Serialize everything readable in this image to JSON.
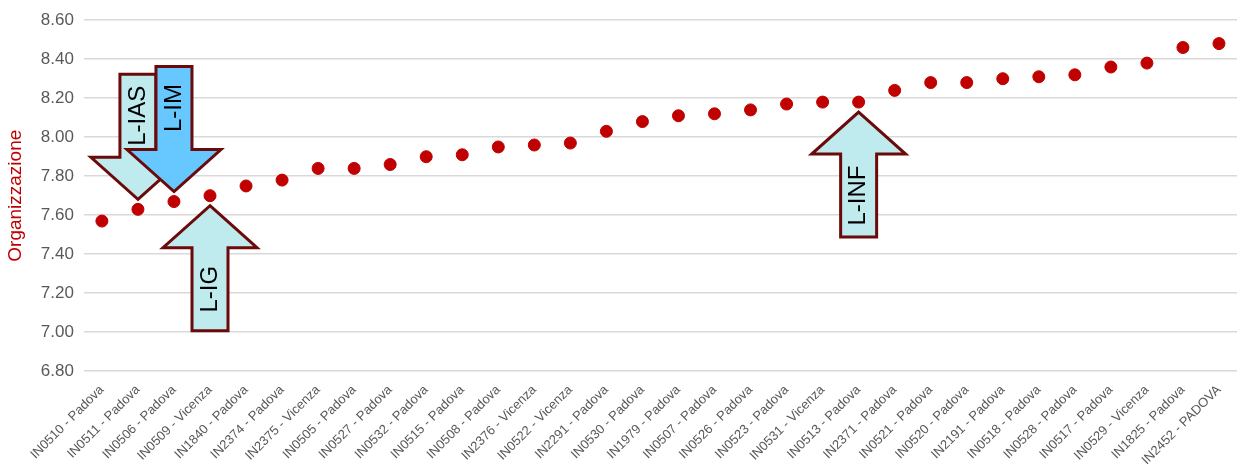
{
  "chart_data": {
    "type": "scatter",
    "ylabel": "Organizzazione",
    "categories": [
      "IN0510 - Padova",
      "IN0511 - Padova",
      "IN0506 - Padova",
      "IN0509 - Vicenza",
      "IN1840 - Padova",
      "IN2374 - Padova",
      "IN2375 - Vicenza",
      "IN0505 - Padova",
      "IN0527 - Padova",
      "IN0532 - Padova",
      "IN0515 - Padova",
      "IN0508 - Padova",
      "IN2376 - Vicenza",
      "IN0522 - Vicenza",
      "IN2291 - Padova",
      "IN0530 - Padova",
      "IN1979 - Padova",
      "IN0507 - Padova",
      "IN0526 - Padova",
      "IN0523 - Padova",
      "IN0531 - Vicenza",
      "IN0513 - Padova",
      "IN2371 - Padova",
      "IN0521 - Padova",
      "IN0520 - Padova",
      "IN2191 - Padova",
      "IN0518 - Padova",
      "IN0528 - Padova",
      "IN0517 - Padova",
      "IN0529 - Vicenza",
      "IN1825 - Padova",
      "IN2452 - PADOVA"
    ],
    "values": [
      7.57,
      7.63,
      7.67,
      7.7,
      7.75,
      7.78,
      7.84,
      7.84,
      7.86,
      7.9,
      7.91,
      7.95,
      7.96,
      7.97,
      8.03,
      8.08,
      8.11,
      8.12,
      8.14,
      8.17,
      8.18,
      8.18,
      8.24,
      8.28,
      8.28,
      8.3,
      8.31,
      8.32,
      8.36,
      8.38,
      8.46,
      8.48
    ],
    "color": "#c00000",
    "marker": "circle",
    "ylim": [
      6.8,
      8.6
    ],
    "yticks": [
      {
        "value": 6.8,
        "label": "6.80"
      },
      {
        "value": 7.0,
        "label": "7.00"
      },
      {
        "value": 7.2,
        "label": "7.20"
      },
      {
        "value": 7.4,
        "label": "7.40"
      },
      {
        "value": 7.6,
        "label": "7.60"
      },
      {
        "value": 7.8,
        "label": "7.80"
      },
      {
        "value": 8.0,
        "label": "8.00"
      },
      {
        "value": 8.2,
        "label": "8.20"
      },
      {
        "value": 8.4,
        "label": "8.40"
      },
      {
        "value": 8.6,
        "label": "8.60"
      }
    ],
    "grid": "y",
    "legend": false,
    "annotations": [
      {
        "text": "L-IAS",
        "x": "IN0511 - Padova",
        "y": 7.63
      },
      {
        "text": "L-IM",
        "x": "IN0506 - Padova",
        "y": 7.67
      },
      {
        "text": "L-IG",
        "x": "IN0509 - Vicenza",
        "y": 7.7
      },
      {
        "text": "L-INF",
        "x": "IN0513 - Padova",
        "y": 8.18
      }
    ]
  }
}
